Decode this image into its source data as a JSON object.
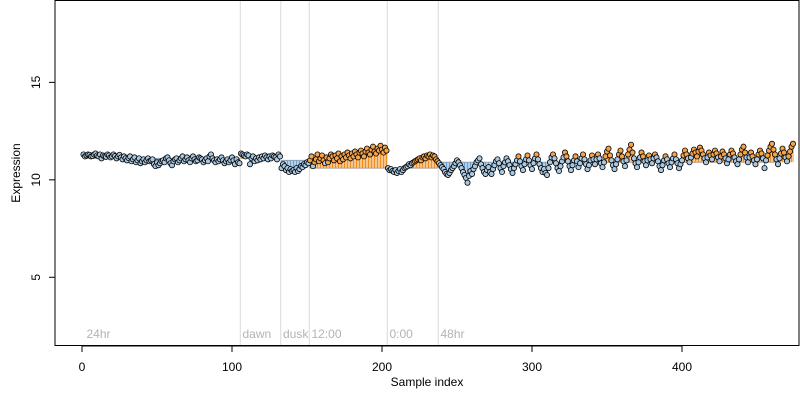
{
  "chart_data": {
    "type": "scatter",
    "title": "",
    "xlabel": "Sample index",
    "ylabel": "Expression",
    "xlim": [
      -18,
      478
    ],
    "ylim": [
      1.5,
      19.2
    ],
    "xticks": [
      0,
      100,
      200,
      300,
      400
    ],
    "yticks": [
      5,
      10,
      15
    ],
    "grid": false,
    "legend": "none",
    "colors": {
      "point_fill_default": "#a9c9e3",
      "point_fill_high": "#f5a44a",
      "point_edge": "#000000",
      "stem_below": "#6a9fd0",
      "stem_above": "#f28c1a",
      "baseline": "#a0a0a0",
      "divider": "#d9d9d9",
      "condition_text": "#b3b3b3"
    },
    "segments": [
      {
        "label": "24hr",
        "x_start": 1,
        "x_end": 105,
        "baseline": 11.1
      },
      {
        "label": "dawn",
        "x_start": 106,
        "x_end": 132,
        "baseline": 11.1
      },
      {
        "label": "dusk",
        "x_start": 133,
        "x_end": 151,
        "baseline": 11.0
      },
      {
        "label": "12:00",
        "x_start": 152,
        "x_end": 203,
        "baseline": 10.6
      },
      {
        "label": "0:00",
        "x_start": 204,
        "x_end": 237,
        "baseline": 10.6
      },
      {
        "label": "48hr",
        "x_start": 238,
        "x_end": 463,
        "baseline": 10.9
      }
    ],
    "dividers_x": [
      105.5,
      132.5,
      151.5,
      203.5,
      237.5
    ],
    "series": [
      {
        "values": [
          11.3,
          11.2,
          11.25,
          11.3,
          11.28,
          11.2,
          11.22,
          11.3,
          11.35,
          11.25,
          11.2,
          11.3,
          11.1,
          11.25,
          11.2,
          11.18,
          11.3,
          11.25,
          11.15,
          11.2,
          11.3,
          11.22,
          11.1,
          11.2,
          11.28,
          11.15,
          11.05,
          11.2,
          11.1,
          11.0,
          11.12,
          11.2,
          10.95,
          11.05,
          11.15,
          10.9,
          11.0,
          11.1,
          10.85,
          10.95,
          11.05,
          10.9,
          11.0,
          11.1,
          10.95,
          11.0,
          11.05,
          10.8,
          10.7,
          10.9,
          10.75,
          10.85,
          10.95,
          11.0,
          10.9,
          11.1,
          11.15,
          11.0,
          10.85,
          10.75,
          10.95,
          11.05,
          11.1,
          10.9,
          11.0,
          11.1,
          11.2,
          10.95,
          11.05,
          11.15,
          11.0,
          10.9,
          11.1,
          11.2,
          11.05,
          10.95,
          11.0,
          11.15,
          11.1,
          11.05,
          10.9,
          11.0,
          11.1,
          10.95,
          11.2,
          11.3,
          11.1,
          11.0,
          10.9,
          11.05,
          10.95,
          11.05,
          11.15,
          11.0,
          10.85,
          10.95,
          11.05,
          10.9,
          11.0,
          11.15,
          11.0,
          10.8,
          11.05,
          10.9,
          10.85,
          11.35,
          11.3,
          11.25,
          11.2,
          11.3,
          11.25,
          10.8,
          11.1,
          11.2,
          10.95,
          11.1,
          11.0,
          11.15,
          11.05,
          11.2,
          11.1,
          11.25,
          11.15,
          11.05,
          11.2,
          11.1,
          11.25,
          11.2,
          11.15,
          11.05,
          11.3,
          11.2,
          10.6,
          10.8,
          10.7,
          10.5,
          10.6,
          10.4,
          10.55,
          10.45,
          10.5,
          10.4,
          10.6,
          10.45,
          10.55,
          10.7,
          10.65,
          10.8,
          10.75,
          10.9,
          10.85,
          11.0,
          11.2,
          10.7,
          10.9,
          11.05,
          11.3,
          10.95,
          11.1,
          11.25,
          11.0,
          10.85,
          11.15,
          10.9,
          11.1,
          11.3,
          11.2,
          11.0,
          11.25,
          11.1,
          11.35,
          10.95,
          11.2,
          11.05,
          11.3,
          11.15,
          11.4,
          11.25,
          11.1,
          11.35,
          11.2,
          11.45,
          11.3,
          11.15,
          11.4,
          11.5,
          11.35,
          11.2,
          11.45,
          11.6,
          11.4,
          11.3,
          11.55,
          11.7,
          11.45,
          11.35,
          11.6,
          11.5,
          11.75,
          11.55,
          11.4,
          11.65,
          11.5,
          10.6,
          10.5,
          10.55,
          10.45,
          10.4,
          10.5,
          10.35,
          10.45,
          10.55,
          10.4,
          10.5,
          10.6,
          10.65,
          10.7,
          10.8,
          10.75,
          10.85,
          10.9,
          10.95,
          11.0,
          11.05,
          11.1,
          11.0,
          11.15,
          11.2,
          11.1,
          11.25,
          11.2,
          11.3,
          11.15,
          11.25,
          11.2,
          11.05,
          10.95,
          10.85,
          10.75,
          10.65,
          10.55,
          10.4,
          10.3,
          10.25,
          10.35,
          10.5,
          10.6,
          10.7,
          10.85,
          11.0,
          10.9,
          10.75,
          10.6,
          10.4,
          10.25,
          10.1,
          9.85,
          10.2,
          10.45,
          10.3,
          10.55,
          10.7,
          10.9,
          11.0,
          11.1,
          10.8,
          10.6,
          10.4,
          10.3,
          10.5,
          10.65,
          10.4,
          10.3,
          10.55,
          10.75,
          10.95,
          11.05,
          10.85,
          10.6,
          10.4,
          10.7,
          10.9,
          11.1,
          10.95,
          10.75,
          10.55,
          10.35,
          10.6,
          10.8,
          11.0,
          11.2,
          10.95,
          10.7,
          10.5,
          10.8,
          11.05,
          11.25,
          11.0,
          10.75,
          10.55,
          10.85,
          11.1,
          11.3,
          11.05,
          10.8,
          10.6,
          10.4,
          10.55,
          10.35,
          10.25,
          10.6,
          10.9,
          11.15,
          11.3,
          11.1,
          10.85,
          10.6,
          10.45,
          10.7,
          10.95,
          11.15,
          11.4,
          11.2,
          10.95,
          10.7,
          10.5,
          10.75,
          11.0,
          11.2,
          10.95,
          10.65,
          10.85,
          11.1,
          11.3,
          11.05,
          10.8,
          10.55,
          10.75,
          11.0,
          11.25,
          11.05,
          10.8,
          11.05,
          11.3,
          11.1,
          10.85,
          10.65,
          10.9,
          11.2,
          11.45,
          11.6,
          11.25,
          11.0,
          10.75,
          10.55,
          10.8,
          11.05,
          11.3,
          11.5,
          11.2,
          10.95,
          10.7,
          11.0,
          11.3,
          11.55,
          11.8,
          11.4,
          11.1,
          10.85,
          10.65,
          10.9,
          11.15,
          11.4,
          11.2,
          10.95,
          10.75,
          11.0,
          11.25,
          11.05,
          10.85,
          11.1,
          11.3,
          11.15,
          10.95,
          10.7,
          10.5,
          10.75,
          11.0,
          11.2,
          11.05,
          10.85,
          10.65,
          10.9,
          11.1,
          11.3,
          11.05,
          10.85,
          10.6,
          10.8,
          11.0,
          11.25,
          11.5,
          11.3,
          11.1,
          10.9,
          11.15,
          11.35,
          11.55,
          11.4,
          11.2,
          11.45,
          11.65,
          11.5,
          11.3,
          11.1,
          10.9,
          11.15,
          11.4,
          11.25,
          11.05,
          11.3,
          11.5,
          11.35,
          11.15,
          10.95,
          11.2,
          11.45,
          11.3,
          11.1,
          10.85,
          11.05,
          11.3,
          11.5,
          11.35,
          11.15,
          10.95,
          10.8,
          11.05,
          11.3,
          11.55,
          11.7,
          11.4,
          11.15,
          10.9,
          11.15,
          11.4,
          11.2,
          11.0,
          10.8,
          11.05,
          11.3,
          11.5,
          11.35,
          11.1,
          10.6,
          11.0,
          11.25,
          11.5,
          11.7,
          11.85,
          11.55,
          11.3,
          11.05,
          10.8,
          11.1,
          11.35,
          11.6,
          11.4,
          11.15,
          10.95,
          11.2,
          11.45,
          11.7,
          11.85
        ]
      }
    ]
  }
}
